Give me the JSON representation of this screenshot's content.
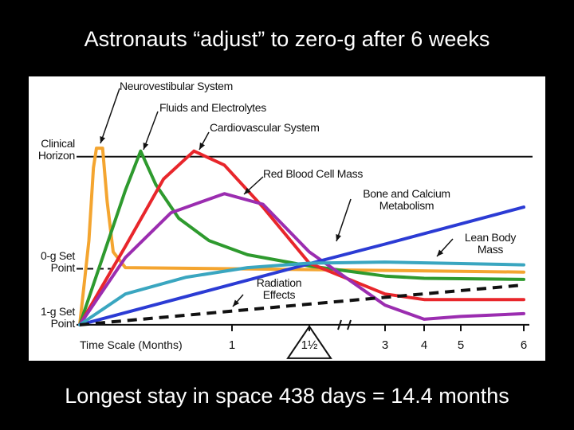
{
  "chart_data": {
    "type": "line",
    "title": "Astronauts “adjust” to zero-g after 6 weeks",
    "footnote": "Longest stay in space 438 days = 14.4 months",
    "x_label": "Time Scale (Months)",
    "xlim": [
      0,
      6
    ],
    "xticks": [
      1,
      {
        "value": 1.5,
        "label": "1½"
      },
      3,
      4,
      5,
      6
    ],
    "ylim": [
      -0.64,
      4.43
    ],
    "yticks": [
      {
        "value": 0,
        "label": "1-g Set Point"
      },
      {
        "value": 1,
        "label": "0-g Set Point"
      },
      {
        "value": 3,
        "label": "Clinical Horizon"
      }
    ],
    "series": [
      {
        "name": "Neurovestibular System",
        "color": "#f4a530",
        "x": [
          0,
          0.06,
          0.09,
          0.11,
          0.15,
          0.18,
          0.22,
          0.3,
          1,
          3,
          6
        ],
        "values": [
          0,
          1.5,
          2.8,
          3.15,
          3.15,
          2.2,
          1.3,
          1.02,
          1.0,
          0.97,
          0.94
        ]
      },
      {
        "name": "Fluids and Electrolytes",
        "color": "#2e9a2e",
        "x": [
          0,
          0.15,
          0.3,
          0.4,
          0.5,
          0.65,
          0.85,
          1.1,
          1.5,
          3,
          4,
          6
        ],
        "values": [
          0,
          1.2,
          2.4,
          3.1,
          2.5,
          1.9,
          1.5,
          1.25,
          1.05,
          0.87,
          0.83,
          0.81
        ]
      },
      {
        "name": "Cardiovascular System",
        "color": "#e8262b",
        "x": [
          0,
          0.3,
          0.55,
          0.75,
          0.95,
          1.2,
          1.5,
          3,
          4,
          6
        ],
        "values": [
          0,
          1.4,
          2.6,
          3.1,
          2.85,
          2.1,
          1.1,
          0.55,
          0.45,
          0.45
        ]
      },
      {
        "name": "Red Blood Cell Mass",
        "color": "#9b2db0",
        "x": [
          0,
          0.3,
          0.6,
          0.95,
          1.2,
          1.5,
          3,
          4,
          5,
          6
        ],
        "values": [
          0,
          1.2,
          2.0,
          2.34,
          2.15,
          1.3,
          0.35,
          0.1,
          0.15,
          0.2
        ]
      },
      {
        "name": "Bone and Calcium Metabolism",
        "color": "#2b3bd4",
        "x": [
          0,
          1.5,
          3,
          6
        ],
        "values": [
          0,
          1.09,
          1.44,
          2.1
        ]
      },
      {
        "name": "Lean Body Mass",
        "color": "#3aa6c0",
        "x": [
          0,
          0.3,
          0.7,
          1.1,
          1.5,
          3,
          6
        ],
        "values": [
          0,
          0.55,
          0.85,
          1.02,
          1.1,
          1.12,
          1.07
        ]
      },
      {
        "name": "Radiation Effects",
        "color": "#111111",
        "dashed": true,
        "x": [
          0,
          1.5,
          3,
          6
        ],
        "values": [
          0,
          0.37,
          0.49,
          0.71
        ]
      }
    ]
  }
}
